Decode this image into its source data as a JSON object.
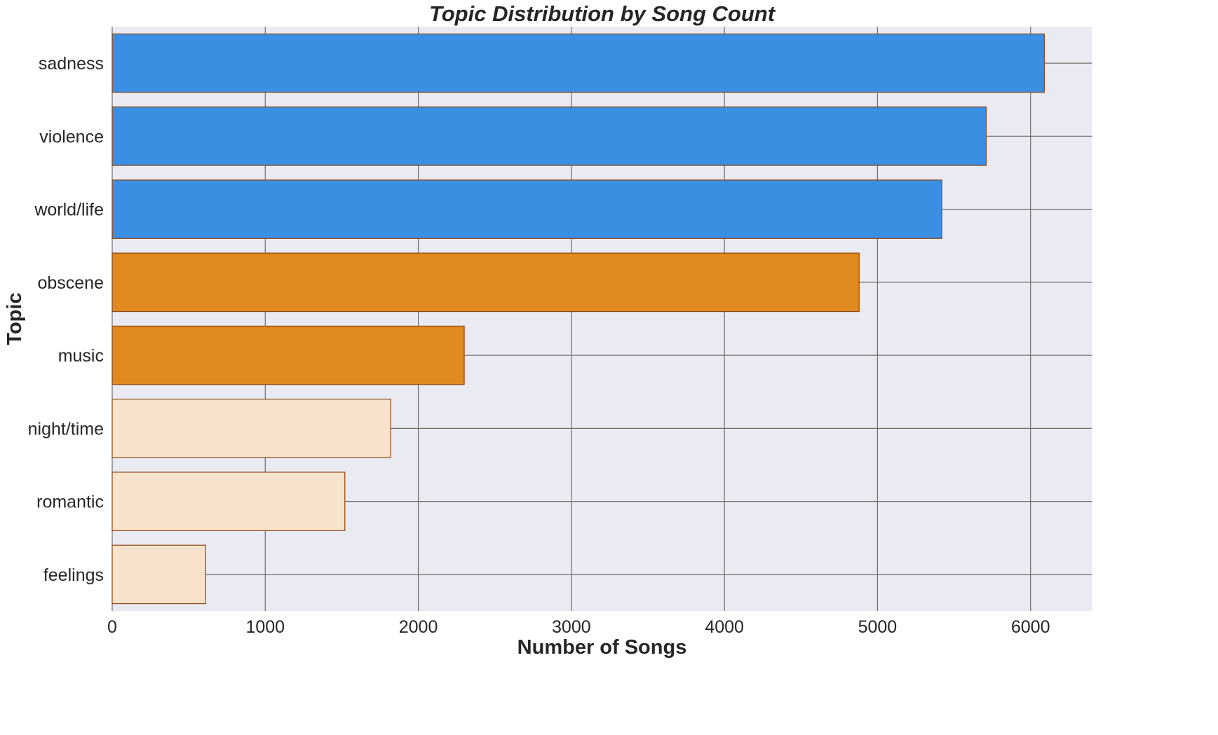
{
  "chart_data": {
    "type": "bar",
    "orientation": "horizontal",
    "title": "Topic Distribution by Song Count",
    "xlabel": "Number of Songs",
    "ylabel": "Topic",
    "categories": [
      "sadness",
      "violence",
      "world/life",
      "obscene",
      "music",
      "night/time",
      "romantic",
      "feelings"
    ],
    "values": [
      6090,
      5710,
      5420,
      4880,
      2300,
      1820,
      1520,
      610
    ],
    "bar_colors": [
      "#3b8fe2",
      "#3b8fe2",
      "#3b8fe2",
      "#e08a20",
      "#e08a20",
      "#f7e3cc",
      "#f7e3cc",
      "#f7e3cc"
    ],
    "bar_edge_color": "#8b4513",
    "xlim": [
      0,
      6400
    ],
    "xticks": [
      0,
      1000,
      2000,
      3000,
      4000,
      5000,
      6000
    ],
    "xtick_labels": [
      "0",
      "1000",
      "2000",
      "3000",
      "4000",
      "5000",
      "6000"
    ],
    "grid": true,
    "background_color": "#eaeaf2",
    "grid_color": "#6e6e6e"
  }
}
